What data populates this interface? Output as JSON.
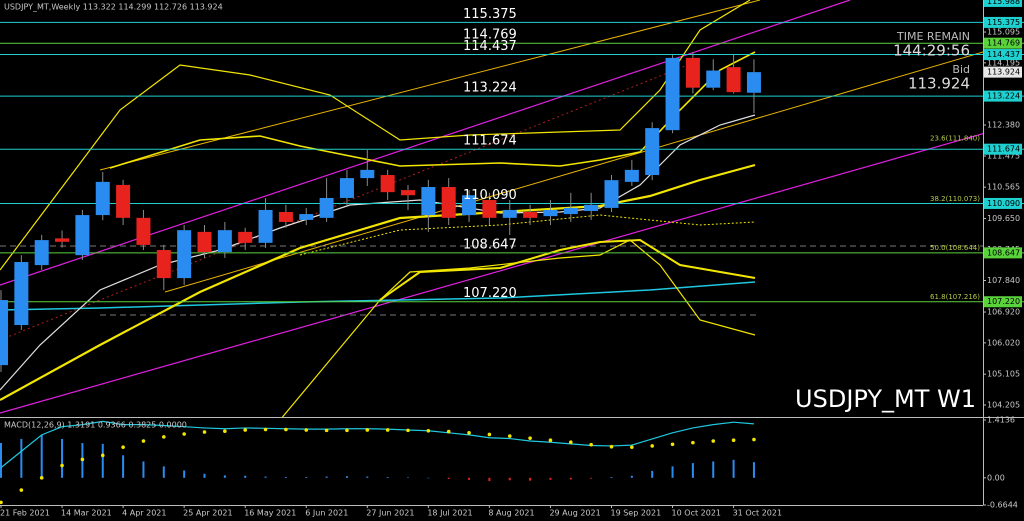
{
  "chart_data": [
    {
      "type": "candlestick",
      "title": "USDJPY_MT,Weekly 113.322 114.299 112.726 113.924",
      "watermark": "USDJPY_MT W1",
      "info": {
        "time_label": "TIME REMAIN",
        "time": "144:29:56",
        "bid_label": "Bid",
        "bid": 113.924
      },
      "categories": [
        "21 Feb 2021",
        null,
        null,
        "14 Mar 2021",
        null,
        null,
        "4 Apr 2021",
        null,
        null,
        "25 Apr 2021",
        null,
        null,
        "16 May 2021",
        null,
        null,
        "6 Jun 2021",
        null,
        null,
        "27 Jun 2021",
        null,
        null,
        "18 Jul 2021",
        null,
        null,
        "8 Aug 2021",
        null,
        null,
        "29 Aug 2021",
        null,
        null,
        "19 Sep 2021",
        null,
        null,
        "10 Oct 2021",
        null,
        null,
        "31 Oct 2021",
        null
      ],
      "open": [
        105.37,
        106.54,
        108.29,
        109.07,
        108.58,
        109.75,
        110.63,
        109.67,
        108.73,
        107.91,
        109.26,
        108.67,
        109.26,
        108.94,
        109.84,
        109.61,
        109.67,
        110.25,
        110.83,
        110.92,
        110.48,
        109.75,
        110.57,
        109.75,
        110.19,
        109.67,
        109.84,
        109.72,
        109.78,
        109.87,
        109.96,
        110.72,
        110.92,
        112.23,
        114.34,
        113.47,
        114.07,
        113.322
      ],
      "high": [
        107.56,
        108.58,
        109.17,
        109.3,
        109.9,
        111.01,
        110.78,
        109.9,
        108.88,
        109.46,
        109.46,
        109.55,
        109.38,
        110.25,
        110.05,
        109.96,
        110.83,
        111.07,
        111.65,
        111.07,
        110.63,
        110.78,
        110.83,
        110.48,
        110.4,
        110.19,
        110.05,
        110.19,
        110.4,
        110.4,
        110.92,
        111.36,
        112.46,
        114.42,
        114.51,
        114.3,
        114.45,
        114.299
      ],
      "low": [
        105.17,
        106.4,
        108.15,
        108.8,
        108.44,
        109.6,
        109.46,
        108.73,
        107.56,
        107.71,
        108.5,
        108.5,
        108.73,
        108.79,
        109.38,
        109.46,
        109.55,
        110.04,
        110.6,
        110.19,
        109.9,
        109.26,
        109.46,
        109.55,
        109.46,
        109.17,
        109.46,
        109.46,
        109.55,
        109.61,
        109.84,
        110.6,
        110.77,
        112.14,
        113.3,
        113.4,
        113.3,
        112.726
      ],
      "close": [
        107.27,
        108.38,
        109.02,
        108.97,
        109.75,
        110.72,
        109.67,
        108.88,
        107.91,
        109.31,
        108.67,
        109.31,
        108.94,
        109.9,
        109.55,
        109.78,
        110.25,
        110.83,
        111.07,
        110.42,
        110.33,
        110.57,
        109.67,
        110.33,
        109.67,
        109.9,
        109.67,
        109.9,
        109.96,
        110.05,
        110.77,
        111.07,
        112.29,
        114.34,
        113.47,
        113.97,
        113.34,
        113.924
      ],
      "up_color": "#2a8cf0",
      "down_color": "#e8231e",
      "wick_color": "#8a8a8a",
      "ylim": [
        103.855,
        116.03
      ],
      "yticks": [
        115.095,
        114.195,
        {
          "value": 112.38,
          "label": "112.380"
        },
        111.475,
        110.565,
        {
          "value": 109.65,
          "label": "109.650"
        },
        108.745,
        {
          "value": 107.84,
          "label": "107.840"
        },
        {
          "value": 106.92,
          "label": "106.920"
        },
        {
          "value": 106.02,
          "label": "106.020"
        },
        105.105,
        104.205
      ],
      "levels": [
        {
          "value": 115.375,
          "color": "#1fd0d0"
        },
        {
          "value": 114.769,
          "color": "#5ad23c"
        },
        {
          "value": 114.437,
          "color": "#1fd0d0"
        },
        {
          "value": 113.224,
          "color": "#1fd0d0"
        },
        {
          "value": 111.674,
          "color": "#1fd0d0"
        },
        {
          "value": 110.09,
          "label": "110.090",
          "color": "#1fd0d0"
        },
        {
          "value": 108.647,
          "color": "#5ad23c"
        },
        {
          "value": 107.22,
          "label": "107.220",
          "color": "#5ad23c"
        }
      ],
      "axis_markers": [
        {
          "value": 115.988,
          "color": "#1fd0d0"
        },
        {
          "value": 113.924,
          "color": "#e8e8e8"
        }
      ],
      "fib_color": "#b7c94a",
      "fib_levels": [
        {
          "value": 111.84,
          "label": "23.6(111.840)"
        },
        {
          "value": 110.073,
          "label": "38.2(110.073)"
        },
        {
          "value": 108.644,
          "label": "50.0(108.644)"
        },
        {
          "value": 107.216,
          "label": "61.8(107.216)"
        }
      ]
    },
    {
      "type": "macd",
      "title": "MACD(12,26,9) 1.3191 0.9366 0.3825 0.0000",
      "ylim": [
        -0.6644,
        1.4136
      ],
      "yticks": [
        1.4136,
        {
          "value": 0,
          "label": "0.00"
        },
        -0.6644
      ],
      "histogram": {
        "values": [
          0.85,
          0.95,
          1.05,
          0.95,
          0.85,
          0.83,
          0.55,
          0.4,
          0.28,
          0.18,
          0.1,
          0.06,
          0.05,
          0.03,
          0.02,
          0.02,
          0.03,
          0.04,
          0.03,
          0.02,
          0.01,
          0,
          -0.03,
          -0.05,
          -0.08,
          -0.06,
          -0.07,
          -0.05,
          -0.04,
          -0.02,
          0.02,
          0.05,
          0.17,
          0.28,
          0.36,
          0.4,
          0.44,
          0.3825
        ],
        "up_color": "#2a8cf0",
        "down_color": "#e8231e"
      },
      "main": {
        "values": [
          0.25,
          0.65,
          1.05,
          1.25,
          1.3,
          1.38,
          1.3,
          1.3,
          1.28,
          1.25,
          1.22,
          1.2,
          1.22,
          1.21,
          1.2,
          1.19,
          1.19,
          1.2,
          1.2,
          1.19,
          1.17,
          1.15,
          1.1,
          1.05,
          0.98,
          0.96,
          0.9,
          0.87,
          0.83,
          0.79,
          0.78,
          0.8,
          0.95,
          1.1,
          1.22,
          1.3,
          1.36,
          1.3191
        ],
        "color": "#1fc8e0"
      },
      "signal": {
        "values": [
          -0.6,
          -0.3,
          0.0,
          0.3,
          0.45,
          0.55,
          0.75,
          0.9,
          1.0,
          1.07,
          1.12,
          1.14,
          1.17,
          1.18,
          1.18,
          1.17,
          1.16,
          1.16,
          1.17,
          1.17,
          1.16,
          1.15,
          1.13,
          1.1,
          1.06,
          1.02,
          0.97,
          0.92,
          0.87,
          0.81,
          0.76,
          0.75,
          0.78,
          0.82,
          0.86,
          0.9,
          0.92,
          0.9366
        ],
        "color": "#f2e600"
      }
    }
  ]
}
